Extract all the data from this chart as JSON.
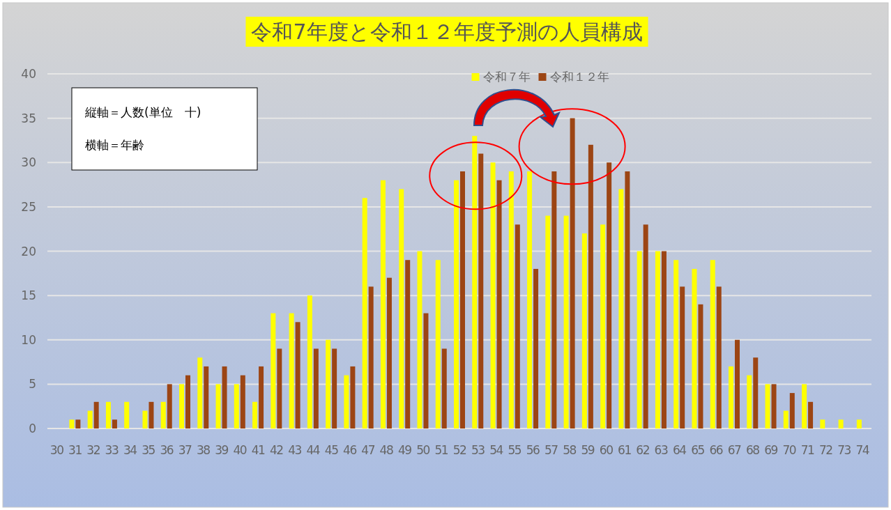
{
  "chart_data": {
    "type": "bar",
    "title": "令和7年度と令和１２年度予測の人員構成",
    "categories": [
      "30",
      "31",
      "32",
      "33",
      "34",
      "35",
      "36",
      "37",
      "38",
      "39",
      "40",
      "41",
      "42",
      "43",
      "44",
      "45",
      "46",
      "47",
      "48",
      "49",
      "50",
      "51",
      "52",
      "53",
      "54",
      "55",
      "56",
      "57",
      "58",
      "59",
      "60",
      "61",
      "62",
      "63",
      "64",
      "65",
      "66",
      "67",
      "68",
      "69",
      "70",
      "71",
      "72",
      "73",
      "74"
    ],
    "series": [
      {
        "name": "令和７年",
        "color": "#ffff00",
        "values": [
          0,
          1,
          2,
          3,
          3,
          2,
          3,
          5,
          8,
          5,
          5,
          3,
          13,
          13,
          15,
          10,
          6,
          26,
          28,
          27,
          20,
          19,
          28,
          33,
          30,
          29,
          29,
          24,
          24,
          22,
          23,
          27,
          20,
          20,
          19,
          18,
          19,
          7,
          6,
          5,
          2,
          5,
          1,
          1,
          1
        ]
      },
      {
        "name": "令和１２年",
        "color": "#9c4514",
        "values": [
          0,
          1,
          3,
          1,
          0,
          3,
          5,
          6,
          7,
          7,
          6,
          7,
          9,
          12,
          9,
          9,
          7,
          16,
          17,
          19,
          13,
          9,
          29,
          31,
          28,
          23,
          18,
          29,
          35,
          32,
          30,
          29,
          23,
          20,
          16,
          14,
          16,
          10,
          8,
          5,
          4,
          3,
          0,
          0,
          0
        ]
      }
    ],
    "ylim": [
      0,
      40
    ],
    "yticks": [
      0,
      5,
      10,
      15,
      20,
      25,
      30,
      35,
      40
    ],
    "grid": "y",
    "legend": "top",
    "annotations": [
      "縦軸＝人数(単位　十)",
      "横軸＝年齢"
    ]
  }
}
